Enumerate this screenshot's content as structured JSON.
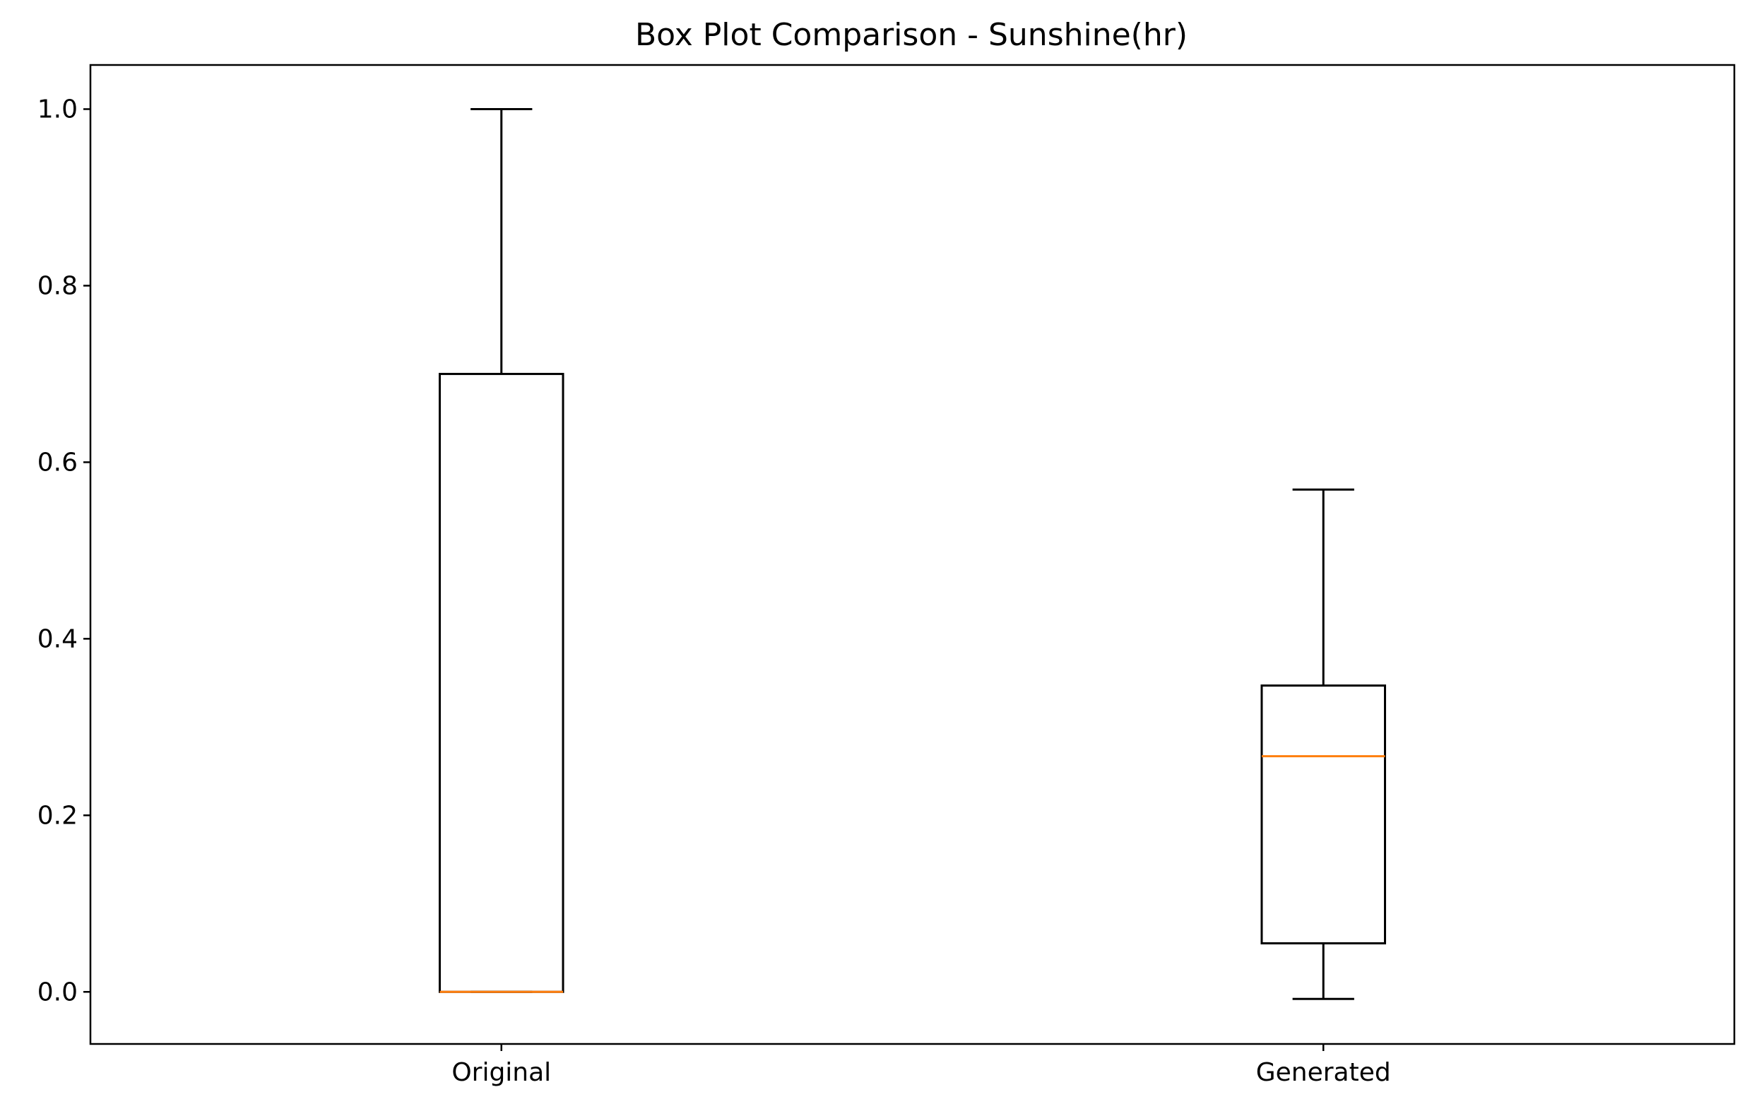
{
  "chart_data": {
    "type": "box",
    "title": "Box Plot Comparison - Sunshine(hr)",
    "xlabel": "",
    "ylabel": "",
    "categories": [
      "Original",
      "Generated"
    ],
    "boxes": [
      {
        "label": "Original",
        "whisker_low": 0.0,
        "q1": 0.0,
        "median": 0.0,
        "q3": 0.7,
        "whisker_high": 1.0
      },
      {
        "label": "Generated",
        "whisker_low": -0.008,
        "q1": 0.055,
        "median": 0.267,
        "q3": 0.347,
        "whisker_high": 0.569
      }
    ],
    "ylim": [
      -0.059,
      1.05
    ],
    "yticks": [
      0.0,
      0.2,
      0.4,
      0.6,
      0.8,
      1.0
    ],
    "ytick_labels": [
      "0.0",
      "0.2",
      "0.4",
      "0.6",
      "0.8",
      "1.0"
    ],
    "grid": false,
    "colors": {
      "box": "#000000",
      "median": "#ff7f0e",
      "background": "#ffffff"
    }
  }
}
